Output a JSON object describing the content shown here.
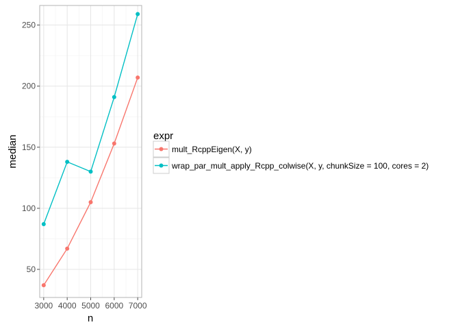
{
  "chart_data": {
    "type": "line",
    "title": "",
    "xlabel": "n",
    "ylabel": "median",
    "x": [
      3000,
      4000,
      5000,
      6000,
      7000
    ],
    "x_ticks": [
      3000,
      4000,
      5000,
      6000,
      7000
    ],
    "y_ticks": [
      50,
      100,
      150,
      200,
      250
    ],
    "xlim": [
      2830,
      7170
    ],
    "ylim": [
      27,
      266
    ],
    "grid": true,
    "legend": {
      "title": "expr",
      "placement": "right"
    },
    "series": [
      {
        "name": "mult_RcppEigen(X, y)",
        "color": "#F8766D",
        "values": [
          37,
          67,
          105,
          153,
          207
        ]
      },
      {
        "name": "wrap_par_mult_apply_Rcpp_colwise(X, y, chunkSize = 100, cores = 2)",
        "color": "#00BFC4",
        "values": [
          87,
          138,
          130,
          191,
          259
        ]
      }
    ]
  }
}
